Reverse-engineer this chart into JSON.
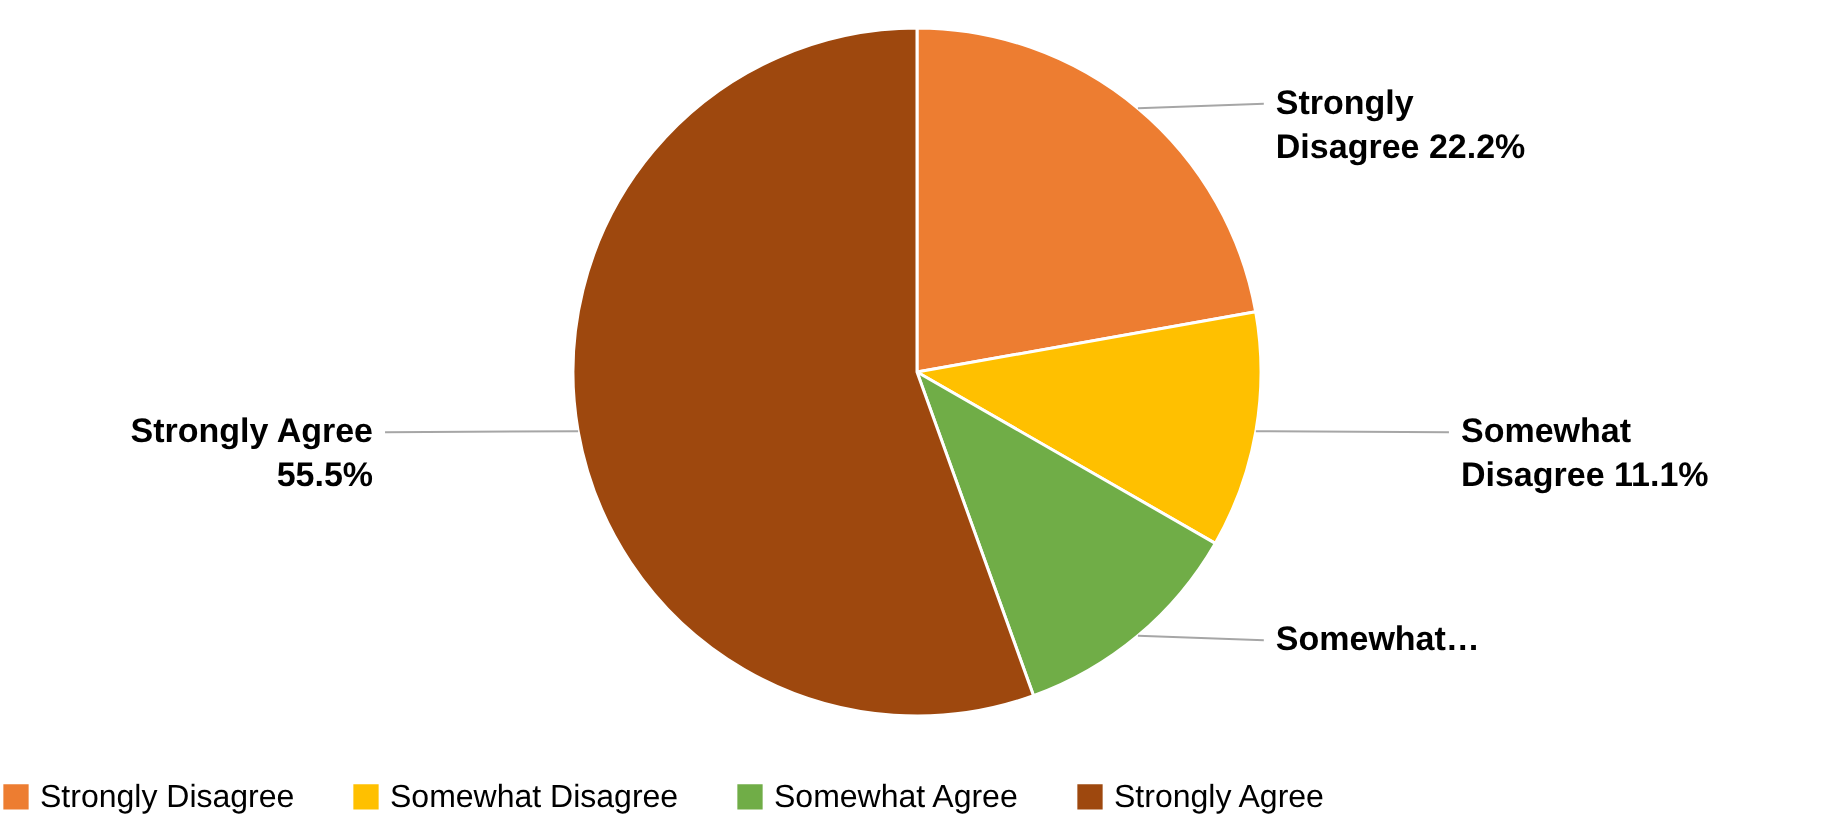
{
  "chart_data": {
    "type": "pie",
    "categories": [
      "Strongly Disagree",
      "Somewhat Disagree",
      "Somewhat Agree",
      "Strongly Agree"
    ],
    "values": [
      22.2,
      11.1,
      11.2,
      55.5
    ],
    "colors": [
      "#ed7d31",
      "#ffc000",
      "#70ad47",
      "#9e480e"
    ],
    "value_labels": [
      "Strongly\nDisagree 22.2%",
      "Somewhat\nDisagree 11.1%",
      "Somewhat…",
      "Strongly Agree\n55.5%"
    ],
    "legend": "bottom"
  }
}
